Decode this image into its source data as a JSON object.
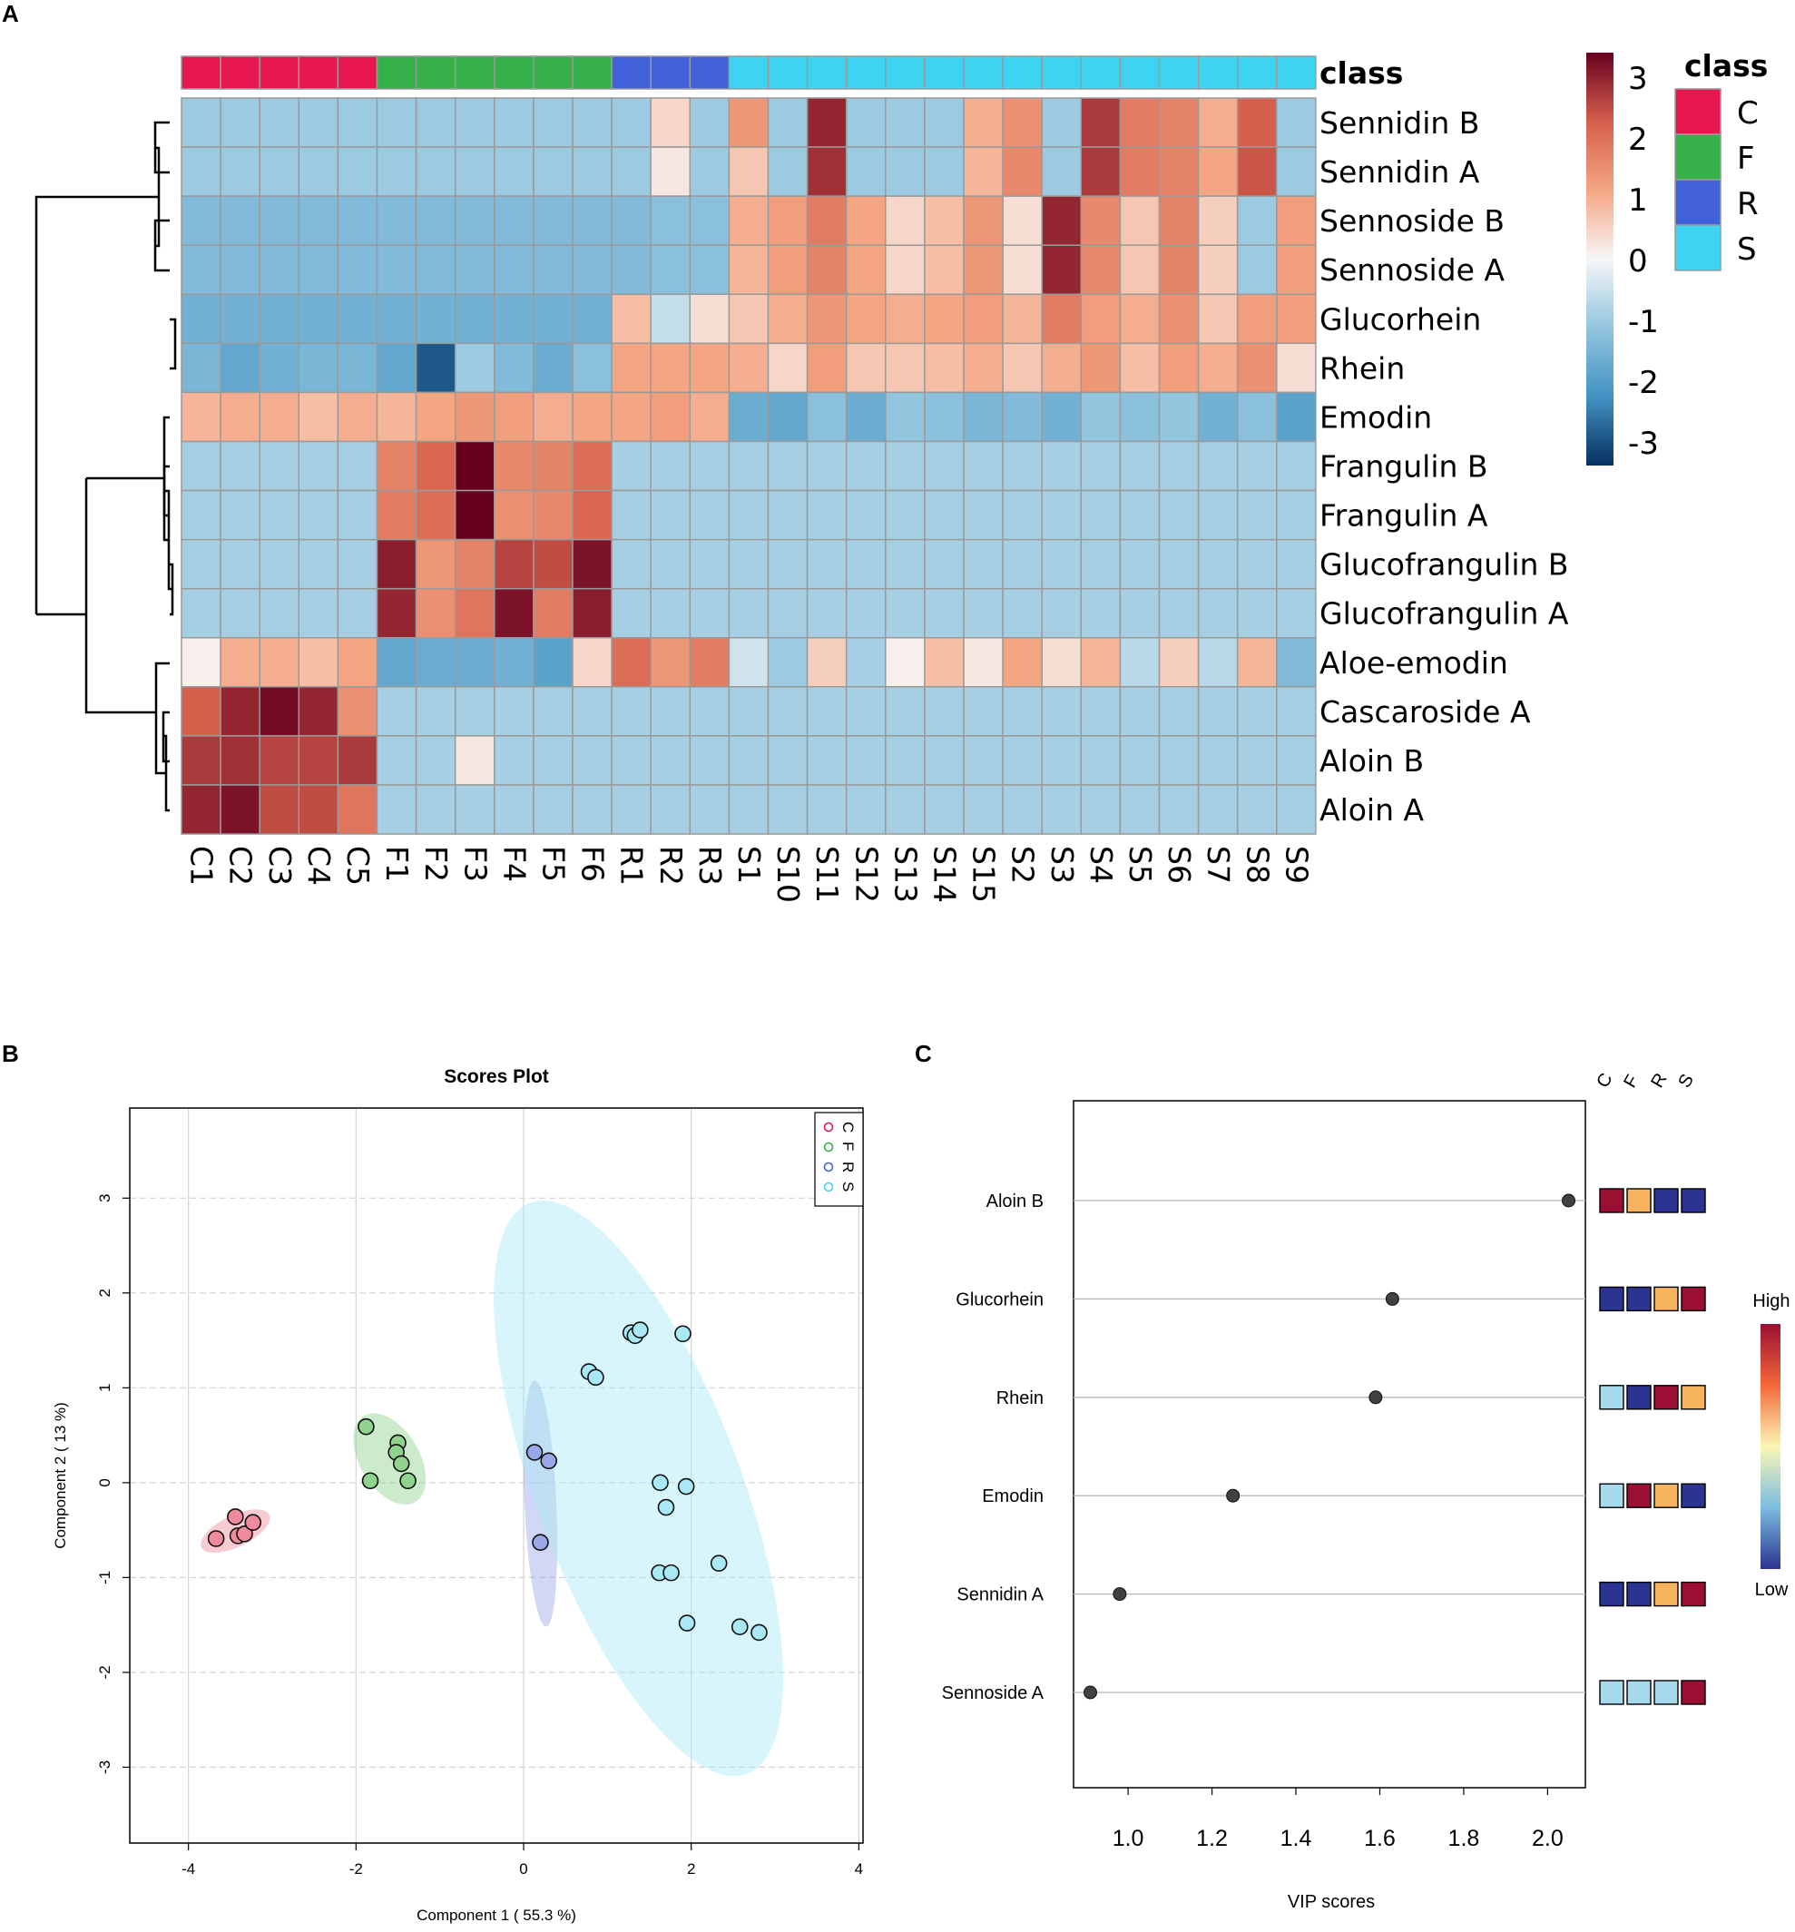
{
  "panels": {
    "a": "A",
    "b": "B",
    "c": "C"
  },
  "chart_data": [
    {
      "type": "heatmap",
      "panel": "A",
      "rows": [
        "Sennidin B",
        "Sennidin A",
        "Sennoside B",
        "Sennoside A",
        "Glucorhein",
        "Rhein",
        "Emodin",
        "Frangulin B",
        "Frangulin A",
        "Glucofrangulin B",
        "Glucofrangulin A",
        "Aloe-emodin",
        "Cascaroside A",
        "Aloin B",
        "Aloin A"
      ],
      "columns": [
        "C1",
        "C2",
        "C3",
        "C4",
        "C5",
        "F1",
        "F2",
        "F3",
        "F4",
        "F5",
        "F6",
        "R1",
        "R2",
        "R3",
        "S1",
        "S10",
        "S11",
        "S12",
        "S13",
        "S14",
        "S15",
        "S2",
        "S3",
        "S4",
        "S5",
        "S6",
        "S7",
        "S8",
        "S9"
      ],
      "column_class": [
        "C",
        "C",
        "C",
        "C",
        "C",
        "F",
        "F",
        "F",
        "F",
        "F",
        "F",
        "R",
        "R",
        "R",
        "S",
        "S",
        "S",
        "S",
        "S",
        "S",
        "S",
        "S",
        "S",
        "S",
        "S",
        "S",
        "S",
        "S",
        "S"
      ],
      "values": [
        [
          -0.9,
          -0.9,
          -0.9,
          -0.9,
          -0.9,
          -0.9,
          -0.9,
          -0.9,
          -0.9,
          -0.9,
          -0.9,
          -0.9,
          0.4,
          -0.9,
          1.2,
          -0.9,
          2.6,
          -0.9,
          -0.9,
          -0.9,
          0.9,
          1.3,
          -0.9,
          2.4,
          1.6,
          1.5,
          0.9,
          2.0,
          -0.9
        ],
        [
          -0.9,
          -0.9,
          -0.9,
          -0.9,
          -0.9,
          -0.9,
          -0.9,
          -0.9,
          -0.9,
          -0.9,
          -0.9,
          -0.9,
          0.2,
          -0.9,
          0.6,
          -0.9,
          2.5,
          -0.9,
          -0.9,
          -0.9,
          0.8,
          1.4,
          -0.9,
          2.4,
          1.6,
          1.5,
          1.0,
          2.1,
          -0.9
        ],
        [
          -1.2,
          -1.2,
          -1.2,
          -1.2,
          -1.2,
          -1.2,
          -1.2,
          -1.2,
          -1.2,
          -1.2,
          -1.2,
          -1.2,
          -1.1,
          -1.1,
          0.9,
          1.1,
          1.6,
          1.0,
          0.4,
          0.7,
          1.2,
          0.3,
          2.6,
          1.4,
          0.6,
          1.5,
          0.5,
          -0.9,
          1.1
        ],
        [
          -1.2,
          -1.2,
          -1.2,
          -1.2,
          -1.2,
          -1.2,
          -1.2,
          -1.2,
          -1.2,
          -1.2,
          -1.2,
          -1.2,
          -1.1,
          -1.1,
          0.8,
          1.1,
          1.5,
          1.0,
          0.4,
          0.7,
          1.2,
          0.3,
          2.6,
          1.4,
          0.6,
          1.5,
          0.5,
          -0.9,
          1.1
        ],
        [
          -1.4,
          -1.4,
          -1.4,
          -1.4,
          -1.4,
          -1.4,
          -1.4,
          -1.4,
          -1.4,
          -1.4,
          -1.4,
          0.7,
          -0.5,
          0.3,
          0.6,
          0.9,
          1.2,
          1.0,
          0.9,
          1.0,
          1.1,
          0.8,
          1.6,
          1.1,
          0.9,
          1.3,
          0.6,
          1.1,
          1.1
        ],
        [
          -1.3,
          -1.6,
          -1.4,
          -1.3,
          -1.3,
          -1.6,
          -2.6,
          -0.9,
          -1.2,
          -1.5,
          -1.1,
          1.0,
          1.0,
          1.0,
          0.9,
          0.4,
          1.1,
          0.6,
          0.6,
          0.7,
          0.9,
          0.6,
          0.9,
          1.2,
          0.7,
          1.1,
          0.9,
          1.3,
          0.3
        ],
        [
          0.8,
          0.9,
          0.9,
          0.7,
          0.9,
          0.8,
          1.0,
          1.2,
          1.1,
          0.9,
          1.0,
          1.0,
          1.1,
          0.9,
          -1.5,
          -1.6,
          -1.1,
          -1.5,
          -1.0,
          -1.1,
          -1.3,
          -1.2,
          -1.4,
          -1.0,
          -1.1,
          -1.0,
          -1.4,
          -1.1,
          -1.7
        ],
        [
          -0.8,
          -0.8,
          -0.8,
          -0.8,
          -0.8,
          1.5,
          1.9,
          3.4,
          1.4,
          1.5,
          1.8,
          -0.8,
          -0.8,
          -0.8,
          -0.8,
          -0.8,
          -0.8,
          -0.8,
          -0.8,
          -0.8,
          -0.8,
          -0.8,
          -0.8,
          -0.8,
          -0.8,
          -0.8,
          -0.8,
          -0.8,
          -0.8
        ],
        [
          -0.8,
          -0.8,
          -0.8,
          -0.8,
          -0.8,
          1.6,
          1.8,
          3.4,
          1.3,
          1.4,
          1.9,
          -0.8,
          -0.8,
          -0.8,
          -0.8,
          -0.8,
          -0.8,
          -0.8,
          -0.8,
          -0.8,
          -0.8,
          -0.8,
          -0.8,
          -0.8,
          -0.8,
          -0.8,
          -0.8,
          -0.8,
          -0.8
        ],
        [
          -0.8,
          -0.8,
          -0.8,
          -0.8,
          -0.8,
          2.7,
          1.2,
          1.5,
          2.3,
          2.2,
          2.8,
          -0.8,
          -0.8,
          -0.8,
          -0.8,
          -0.8,
          -0.8,
          -0.8,
          -0.8,
          -0.8,
          -0.8,
          -0.8,
          -0.8,
          -0.8,
          -0.8,
          -0.8,
          -0.8,
          -0.8,
          -0.8
        ],
        [
          -0.8,
          -0.8,
          -0.8,
          -0.8,
          -0.8,
          2.6,
          1.3,
          1.7,
          2.8,
          1.6,
          2.7,
          -0.8,
          -0.8,
          -0.8,
          -0.8,
          -0.8,
          -0.8,
          -0.8,
          -0.8,
          -0.8,
          -0.8,
          -0.8,
          -0.8,
          -0.8,
          -0.8,
          -0.8,
          -0.8,
          -0.8,
          -0.8
        ],
        [
          0.1,
          0.9,
          0.9,
          0.7,
          1.0,
          -1.6,
          -1.5,
          -1.5,
          -1.4,
          -1.7,
          0.4,
          1.8,
          1.2,
          1.6,
          -0.4,
          -0.9,
          0.5,
          -0.8,
          0.1,
          0.7,
          0.2,
          1.0,
          0.3,
          0.8,
          -0.6,
          0.5,
          -0.6,
          0.8,
          -1.2
        ],
        [
          2.0,
          2.6,
          2.9,
          2.6,
          1.3,
          -0.8,
          -0.8,
          -0.8,
          -0.8,
          -0.8,
          -0.8,
          -0.8,
          -0.8,
          -0.8,
          -0.8,
          -0.8,
          -0.8,
          -0.8,
          -0.8,
          -0.8,
          -0.8,
          -0.8,
          -0.8,
          -0.8,
          -0.8,
          -0.8,
          -0.8,
          -0.8,
          -0.8
        ],
        [
          2.4,
          2.5,
          2.3,
          2.3,
          2.4,
          -0.8,
          -0.8,
          0.2,
          -0.8,
          -0.8,
          -0.8,
          -0.8,
          -0.8,
          -0.8,
          -0.8,
          -0.8,
          -0.8,
          -0.8,
          -0.8,
          -0.8,
          -0.8,
          -0.8,
          -0.8,
          -0.8,
          -0.8,
          -0.8,
          -0.8,
          -0.8,
          -0.8
        ],
        [
          2.6,
          2.8,
          2.2,
          2.2,
          1.7,
          -0.8,
          -0.8,
          -0.8,
          -0.8,
          -0.8,
          -0.8,
          -0.8,
          -0.8,
          -0.8,
          -0.8,
          -0.8,
          -0.8,
          -0.8,
          -0.8,
          -0.8,
          -0.8,
          -0.8,
          -0.8,
          -0.8,
          -0.8,
          -0.8,
          -0.8,
          -0.8,
          -0.8
        ]
      ],
      "color_scale": {
        "min": -3,
        "max": 3,
        "ticks": [
          "3",
          "2",
          "1",
          "0",
          "-1",
          "-2",
          "-3"
        ]
      },
      "annotation_title": "class",
      "classes": [
        {
          "name": "C",
          "color": "#e8174f"
        },
        {
          "name": "F",
          "color": "#36b14a"
        },
        {
          "name": "R",
          "color": "#4262dc"
        },
        {
          "name": "S",
          "color": "#3dd4f2"
        }
      ]
    },
    {
      "type": "scatter",
      "panel": "B",
      "title": "Scores Plot",
      "xlabel": "Component 1 ( 55.3 %)",
      "ylabel": "Component 2 ( 13 %)",
      "xlim": [
        -4.7,
        4.05
      ],
      "ylim": [
        -3.8,
        3.95
      ],
      "xticks": [
        -4,
        -2,
        0,
        2,
        4
      ],
      "xtick_labels": [
        "-4",
        "-2",
        "0",
        "2",
        "4"
      ],
      "yticks": [
        -3,
        -2,
        -1,
        0,
        1,
        2,
        3
      ],
      "ytick_labels": [
        "-3",
        "-2",
        "-1",
        "0",
        "1",
        "2",
        "3"
      ],
      "legend": [
        "C",
        "F",
        "R",
        "S"
      ],
      "series": [
        {
          "name": "C",
          "color": "#e8174f",
          "fill": "#f08b9e",
          "ellipse": {
            "cx": -3.44,
            "cy": -0.51,
            "rx": 0.44,
            "ry": 0.17,
            "angle_deg": 22
          },
          "points": [
            [
              -3.67,
              -0.59
            ],
            [
              -3.44,
              -0.36
            ],
            [
              -3.41,
              -0.56
            ],
            [
              -3.33,
              -0.54
            ],
            [
              -3.23,
              -0.42
            ]
          ]
        },
        {
          "name": "F",
          "color": "#36b14a",
          "fill": "#8fd38f",
          "ellipse": {
            "cx": -1.6,
            "cy": 0.25,
            "rx": 0.55,
            "ry": 0.34,
            "angle_deg": -52
          },
          "points": [
            [
              -1.88,
              0.59
            ],
            [
              -1.83,
              0.02
            ],
            [
              -1.5,
              0.42
            ],
            [
              -1.52,
              0.32
            ],
            [
              -1.46,
              0.2
            ],
            [
              -1.38,
              0.02
            ]
          ]
        },
        {
          "name": "R",
          "color": "#4262dc",
          "fill": "#9aa7e8",
          "ellipse": {
            "cx": 0.2,
            "cy": -0.22,
            "rx": 1.3,
            "ry": 0.19,
            "angle_deg": -87
          },
          "points": [
            [
              0.13,
              0.32
            ],
            [
              0.3,
              0.23
            ],
            [
              0.2,
              -0.63
            ]
          ]
        },
        {
          "name": "S",
          "color": "#3dd4f2",
          "fill": "#a9e9f6",
          "ellipse": {
            "cx": 1.37,
            "cy": -0.06,
            "rx": 3.28,
            "ry": 1.2,
            "angle_deg": -66
          },
          "points": [
            [
              1.28,
              1.58
            ],
            [
              1.33,
              1.55
            ],
            [
              1.39,
              1.61
            ],
            [
              1.9,
              1.57
            ],
            [
              0.78,
              1.17
            ],
            [
              0.86,
              1.11
            ],
            [
              1.63,
              0.0
            ],
            [
              1.94,
              -0.04
            ],
            [
              1.7,
              -0.26
            ],
            [
              1.62,
              -0.95
            ],
            [
              1.76,
              -0.95
            ],
            [
              2.33,
              -0.85
            ],
            [
              1.95,
              -1.48
            ],
            [
              2.58,
              -1.52
            ],
            [
              2.81,
              -1.58
            ]
          ]
        }
      ]
    },
    {
      "type": "scatter",
      "panel": "C",
      "xlabel": "VIP scores",
      "xlim": [
        0.87,
        2.09
      ],
      "xticks": [
        1.0,
        1.2,
        1.4,
        1.6,
        1.8,
        2.0
      ],
      "xtick_labels": [
        "1.0",
        "1.2",
        "1.4",
        "1.6",
        "1.8",
        "2.0"
      ],
      "features": [
        "Aloin B",
        "Glucorhein",
        "Rhein",
        "Emodin",
        "Sennidin A",
        "Sennoside A"
      ],
      "values": [
        2.05,
        1.63,
        1.59,
        1.25,
        0.98,
        0.91
      ],
      "group_headers": [
        "C",
        "F",
        "R",
        "S"
      ],
      "group_levels": [
        [
          "#9a0f33",
          "#f7b35d",
          "#2b3490",
          "#2b3490"
        ],
        [
          "#2b3490",
          "#2b3490",
          "#f7b35d",
          "#9a0f33"
        ],
        [
          "#a6d9ec",
          "#2b3490",
          "#9a0f33",
          "#f7b35d"
        ],
        [
          "#a6d9ec",
          "#9a0f33",
          "#f7b35d",
          "#2b3490"
        ],
        [
          "#2b3490",
          "#2b3490",
          "#f7b35d",
          "#9a0f33"
        ],
        [
          "#a6d9ec",
          "#a6d9ec",
          "#a6d9ec",
          "#9a0f33"
        ]
      ],
      "color_legend": {
        "high": "High",
        "low": "Low"
      }
    }
  ]
}
